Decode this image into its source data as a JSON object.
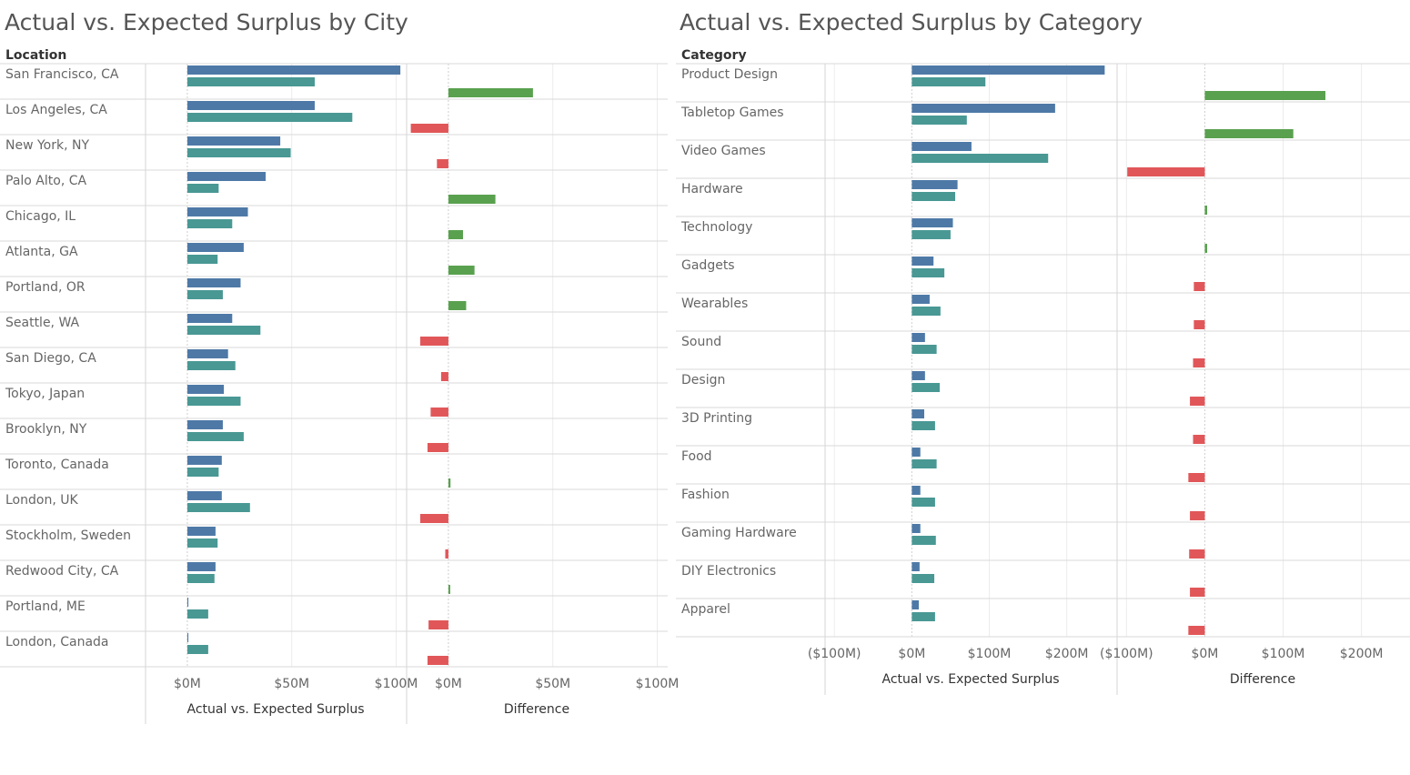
{
  "chart_data": [
    {
      "type": "bar",
      "title": "Actual vs. Expected Surplus by City",
      "row_header": "Location",
      "colors": {
        "actual": "#4e79a7",
        "expected": "#499894",
        "positive": "#59a14f",
        "negative": "#e15759"
      },
      "categories": [
        "San Francisco, CA",
        "Los Angeles, CA",
        "New York, NY",
        "Palo Alto, CA",
        "Chicago, IL",
        "Atlanta, GA",
        "Portland, OR",
        "Seattle, WA",
        "San Diego, CA",
        "Tokyo, Japan",
        "Brooklyn, NY",
        "Toronto, Canada",
        "London, UK",
        "Stockholm, Sweden",
        "Redwood City, CA",
        "Portland, ME",
        "London, Canada"
      ],
      "panels": [
        {
          "xlabel": "Actual vs. Expected Surplus",
          "ticks": [
            "$0M",
            "$50M",
            "$100M"
          ],
          "tick_values": [
            0,
            50,
            100
          ],
          "xlim": [
            -20,
            105
          ],
          "series": [
            {
              "values": [
                102,
                61,
                44.5,
                37.5,
                29,
                27,
                25.5,
                21.5,
                19.5,
                17.5,
                17,
                16.5,
                16.5,
                13.5,
                13.5,
                0.5,
                0.5
              ]
            },
            {
              "values": [
                61,
                79,
                49.5,
                15,
                21.5,
                14.5,
                17,
                35,
                23,
                25.5,
                27,
                15,
                30,
                14.5,
                13,
                10,
                10
              ]
            }
          ]
        },
        {
          "xlabel": "Difference",
          "ticks": [
            "$0M",
            "$50M",
            "$100M"
          ],
          "tick_values": [
            0,
            50,
            100
          ],
          "xlim": [
            -20,
            105
          ],
          "series": [
            {
              "values": [
                40.5,
                -18,
                -5.5,
                22.5,
                7,
                12.5,
                8.5,
                -13.5,
                -3.5,
                -8.5,
                -10,
                1,
                -13.5,
                -1.5,
                0.5,
                -9.5,
                -10
              ]
            }
          ]
        }
      ]
    },
    {
      "type": "bar",
      "title": "Actual vs. Expected Surplus by Category",
      "row_header": "Category",
      "colors": {
        "actual": "#4e79a7",
        "expected": "#499894",
        "positive": "#59a14f",
        "negative": "#e15759"
      },
      "categories": [
        "Product Design",
        "Tabletop Games",
        "Video Games",
        "Hardware",
        "Technology",
        "Gadgets",
        "Wearables",
        "Sound",
        "Design",
        "3D Printing",
        "Food",
        "Fashion",
        "Gaming Hardware",
        "DIY Electronics",
        "Apparel"
      ],
      "panels": [
        {
          "xlabel": "Actual vs. Expected Surplus",
          "ticks": [
            "($100M)",
            "$0M",
            "$100M",
            "$200M"
          ],
          "tick_values": [
            -100,
            0,
            100,
            200
          ],
          "xlim": [
            -112,
            265
          ],
          "series": [
            {
              "values": [
                249,
                185,
                77,
                59,
                53,
                28,
                23,
                17,
                17,
                16,
                11,
                11,
                11,
                10,
                9
              ]
            },
            {
              "values": [
                95,
                71,
                176,
                56,
                50,
                42,
                37,
                32,
                36,
                30,
                32,
                30,
                31,
                29,
                30
              ]
            }
          ]
        },
        {
          "xlabel": "Difference",
          "ticks": [
            "($100M)",
            "$0M",
            "$100M",
            "$200M"
          ],
          "tick_values": [
            -100,
            0,
            100,
            200
          ],
          "xlim": [
            -112,
            262
          ],
          "series": [
            {
              "values": [
                154,
                113,
                -99,
                3,
                3,
                -14,
                -14,
                -15,
                -19,
                -15,
                -21,
                -19,
                -20,
                -19,
                -21
              ]
            }
          ]
        }
      ]
    }
  ]
}
